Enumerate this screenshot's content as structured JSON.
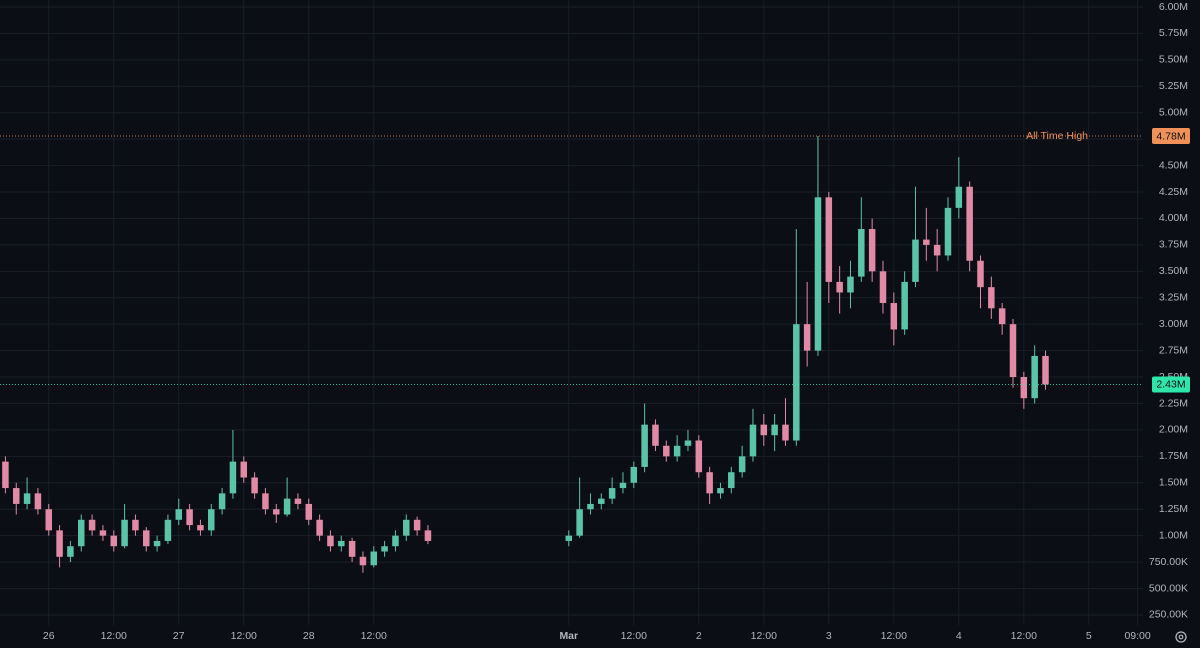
{
  "chart_data": {
    "type": "candlestick",
    "x": [
      "02-25 16:00",
      "02-25 18:00",
      "02-25 20:00",
      "02-25 22:00",
      "02-26 00:00",
      "02-26 02:00",
      "02-26 04:00",
      "02-26 06:00",
      "02-26 08:00",
      "02-26 10:00",
      "02-26 12:00",
      "02-26 14:00",
      "02-26 16:00",
      "02-26 18:00",
      "02-26 20:00",
      "02-26 22:00",
      "02-27 00:00",
      "02-27 02:00",
      "02-27 04:00",
      "02-27 06:00",
      "02-27 08:00",
      "02-27 10:00",
      "02-27 12:00",
      "02-27 14:00",
      "02-27 16:00",
      "02-27 18:00",
      "02-27 20:00",
      "02-27 22:00",
      "02-28 00:00",
      "02-28 02:00",
      "02-28 04:00",
      "02-28 06:00",
      "02-28 08:00",
      "02-28 10:00",
      "02-28 12:00",
      "02-28 14:00",
      "02-28 16:00",
      "02-28 18:00",
      "02-28 20:00",
      "02-28 22:00",
      "03-01 00:00",
      "03-01 02:00",
      "03-01 04:00",
      "03-01 06:00",
      "03-01 08:00",
      "03-01 10:00",
      "03-01 12:00",
      "03-01 14:00",
      "03-01 16:00",
      "03-01 18:00",
      "03-01 20:00",
      "03-01 22:00",
      "03-02 00:00",
      "03-02 02:00",
      "03-02 04:00",
      "03-02 06:00",
      "03-02 08:00",
      "03-02 10:00",
      "03-02 12:00",
      "03-02 14:00",
      "03-02 16:00",
      "03-02 18:00",
      "03-02 20:00",
      "03-02 22:00",
      "03-03 00:00",
      "03-03 02:00",
      "03-03 04:00",
      "03-03 06:00",
      "03-03 08:00",
      "03-03 10:00",
      "03-03 12:00",
      "03-03 14:00",
      "03-03 16:00",
      "03-03 18:00",
      "03-03 20:00",
      "03-03 22:00",
      "03-04 00:00",
      "03-04 02:00",
      "03-04 04:00",
      "03-04 06:00",
      "03-04 08:00",
      "03-04 10:00",
      "03-04 12:00",
      "03-04 14:00",
      "03-04 16:00"
    ],
    "open": [
      1700000,
      1450000,
      1300000,
      1400000,
      1250000,
      1050000,
      800000,
      900000,
      1150000,
      1050000,
      1000000,
      900000,
      1150000,
      1050000,
      900000,
      950000,
      1150000,
      1250000,
      1100000,
      1050000,
      1250000,
      1400000,
      1700000,
      1550000,
      1400000,
      1250000,
      1200000,
      1350000,
      1300000,
      1150000,
      1000000,
      900000,
      950000,
      800000,
      720000,
      850000,
      900000,
      1000000,
      1150000,
      1050000,
      950000,
      1000000,
      1250000,
      1300000,
      1350000,
      1450000,
      1500000,
      1650000,
      2050000,
      1850000,
      1750000,
      1850000,
      1900000,
      1600000,
      1400000,
      1450000,
      1600000,
      1750000,
      2050000,
      1950000,
      2050000,
      1900000,
      3000000,
      2750000,
      4200000,
      3400000,
      3300000,
      3450000,
      3900000,
      3500000,
      3200000,
      2950000,
      3400000,
      3800000,
      3750000,
      3650000,
      4100000,
      4300000,
      3600000,
      3350000,
      3150000,
      3000000,
      2500000,
      2300000,
      2700000
    ],
    "high": [
      1750000,
      1500000,
      1550000,
      1450000,
      1300000,
      1100000,
      950000,
      1200000,
      1200000,
      1100000,
      1050000,
      1300000,
      1200000,
      1080000,
      1000000,
      1200000,
      1350000,
      1300000,
      1150000,
      1300000,
      1450000,
      2000000,
      1750000,
      1600000,
      1450000,
      1300000,
      1550000,
      1400000,
      1350000,
      1200000,
      1050000,
      1000000,
      980000,
      850000,
      900000,
      950000,
      1050000,
      1200000,
      1180000,
      1100000,
      1050000,
      1550000,
      1400000,
      1400000,
      1550000,
      1600000,
      1700000,
      2250000,
      2100000,
      1900000,
      1950000,
      2000000,
      1950000,
      1650000,
      1500000,
      1650000,
      1850000,
      2200000,
      2150000,
      2150000,
      2300000,
      3900000,
      3400000,
      4780000,
      4250000,
      3550000,
      3600000,
      4200000,
      4000000,
      3600000,
      3300000,
      3500000,
      4300000,
      4100000,
      3900000,
      4200000,
      4580000,
      4350000,
      3650000,
      3450000,
      3200000,
      3050000,
      2550000,
      2800000,
      2750000
    ],
    "low": [
      1400000,
      1200000,
      1250000,
      1200000,
      1000000,
      700000,
      750000,
      850000,
      1000000,
      950000,
      850000,
      880000,
      1000000,
      850000,
      850000,
      920000,
      1100000,
      1050000,
      1000000,
      1000000,
      1200000,
      1350000,
      1500000,
      1350000,
      1200000,
      1120000,
      1180000,
      1250000,
      1100000,
      950000,
      850000,
      850000,
      750000,
      650000,
      700000,
      800000,
      850000,
      950000,
      1000000,
      920000,
      900000,
      980000,
      1200000,
      1250000,
      1300000,
      1400000,
      1450000,
      1600000,
      1800000,
      1700000,
      1700000,
      1800000,
      1550000,
      1300000,
      1350000,
      1400000,
      1550000,
      1700000,
      1850000,
      1800000,
      1850000,
      1850000,
      2600000,
      2700000,
      3200000,
      3100000,
      3150000,
      3400000,
      3400000,
      3100000,
      2800000,
      2900000,
      3350000,
      3600000,
      3500000,
      3600000,
      4000000,
      3500000,
      3150000,
      3050000,
      2900000,
      2400000,
      2200000,
      2250000,
      2380000
    ],
    "close": [
      1450000,
      1300000,
      1400000,
      1250000,
      1050000,
      800000,
      900000,
      1150000,
      1050000,
      1000000,
      900000,
      1150000,
      1050000,
      900000,
      950000,
      1150000,
      1250000,
      1100000,
      1050000,
      1250000,
      1400000,
      1700000,
      1550000,
      1400000,
      1250000,
      1200000,
      1350000,
      1300000,
      1150000,
      1000000,
      900000,
      950000,
      800000,
      720000,
      850000,
      900000,
      1000000,
      1150000,
      1050000,
      950000,
      1000000,
      1250000,
      1300000,
      1350000,
      1450000,
      1500000,
      1650000,
      2050000,
      1850000,
      1750000,
      1850000,
      1900000,
      1600000,
      1400000,
      1450000,
      1600000,
      1750000,
      2050000,
      1950000,
      2050000,
      1900000,
      3000000,
      2750000,
      4200000,
      3400000,
      3300000,
      3450000,
      3900000,
      3500000,
      3200000,
      2950000,
      3400000,
      3800000,
      3750000,
      3650000,
      4100000,
      4300000,
      3600000,
      3350000,
      3150000,
      3000000,
      2500000,
      2300000,
      2700000,
      2430000
    ],
    "up_color": "#5cc4a6",
    "down_color": "#e08aa6",
    "xlim": [
      "02-25 15:00",
      "03-05 10:00"
    ],
    "xticks": [
      {
        "value": "02-26 00:00",
        "label": "26"
      },
      {
        "value": "02-26 12:00",
        "label": "12:00"
      },
      {
        "value": "02-27 00:00",
        "label": "27"
      },
      {
        "value": "02-27 12:00",
        "label": "12:00"
      },
      {
        "value": "02-28 00:00",
        "label": "28"
      },
      {
        "value": "02-28 12:00",
        "label": "12:00"
      },
      {
        "value": "03-01 00:00",
        "label": "Mar"
      },
      {
        "value": "03-01 12:00",
        "label": "12:00"
      },
      {
        "value": "03-02 00:00",
        "label": "2"
      },
      {
        "value": "03-02 12:00",
        "label": "12:00"
      },
      {
        "value": "03-03 00:00",
        "label": "3"
      },
      {
        "value": "03-03 12:00",
        "label": "12:00"
      },
      {
        "value": "03-04 00:00",
        "label": "4"
      },
      {
        "value": "03-04 12:00",
        "label": "12:00"
      },
      {
        "value": "03-05 00:00",
        "label": "5"
      },
      {
        "value": "03-05 09:00",
        "label": "09:00"
      }
    ],
    "ylim": [
      155000,
      6066000
    ],
    "yticks": [
      {
        "value": 250000,
        "label": "250.00K"
      },
      {
        "value": 500000,
        "label": "500.00K"
      },
      {
        "value": 750000,
        "label": "750.00K"
      },
      {
        "value": 1000000,
        "label": "1.00M"
      },
      {
        "value": 1250000,
        "label": "1.25M"
      },
      {
        "value": 1500000,
        "label": "1.50M"
      },
      {
        "value": 1750000,
        "label": "1.75M"
      },
      {
        "value": 2000000,
        "label": "2.00M"
      },
      {
        "value": 2250000,
        "label": "2.25M"
      },
      {
        "value": 2500000,
        "label": "2.50M"
      },
      {
        "value": 2750000,
        "label": "2.75M"
      },
      {
        "value": 3000000,
        "label": "3.00M"
      },
      {
        "value": 3250000,
        "label": "3.25M"
      },
      {
        "value": 3500000,
        "label": "3.50M"
      },
      {
        "value": 3750000,
        "label": "3.75M"
      },
      {
        "value": 4000000,
        "label": "4.00M"
      },
      {
        "value": 4250000,
        "label": "4.25M"
      },
      {
        "value": 4500000,
        "label": "4.50M"
      },
      {
        "value": 4750000,
        "label": "4.75M"
      },
      {
        "value": 5000000,
        "label": "5.00M"
      },
      {
        "value": 5250000,
        "label": "5.25M"
      },
      {
        "value": 5500000,
        "label": "5.50M"
      },
      {
        "value": 5750000,
        "label": "5.75M"
      },
      {
        "value": 6000000,
        "label": "6.00M"
      }
    ],
    "grid": true,
    "price_lines": [
      {
        "label": "All Time High",
        "value": 4780000,
        "value_label": "4.78M",
        "color": "#f0915a"
      },
      {
        "value": 2430000,
        "value_label": "2.43M",
        "color": "#2ee6a8"
      }
    ]
  }
}
